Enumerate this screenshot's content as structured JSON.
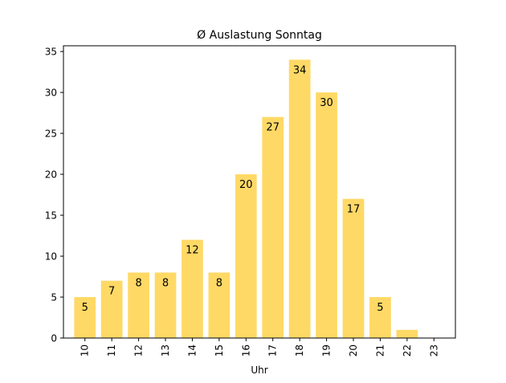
{
  "chart_data": {
    "type": "bar",
    "title": "Ø Auslastung Sonntag",
    "xlabel": "Uhr",
    "ylabel": "",
    "categories": [
      "10",
      "11",
      "12",
      "13",
      "14",
      "15",
      "16",
      "17",
      "18",
      "19",
      "20",
      "21",
      "22",
      "23"
    ],
    "values": [
      5,
      7,
      8,
      8,
      12,
      8,
      20,
      27,
      34,
      30,
      17,
      5,
      1,
      0
    ],
    "value_labels": [
      "5",
      "7",
      "8",
      "8",
      "12",
      "8",
      "20",
      "27",
      "34",
      "30",
      "17",
      "5",
      "",
      ""
    ],
    "ylim": [
      0,
      35.7
    ],
    "yticks": [
      0,
      5,
      10,
      15,
      20,
      25,
      30,
      35
    ],
    "bar_color": "#ffd966",
    "grid": false,
    "legend": "none"
  }
}
